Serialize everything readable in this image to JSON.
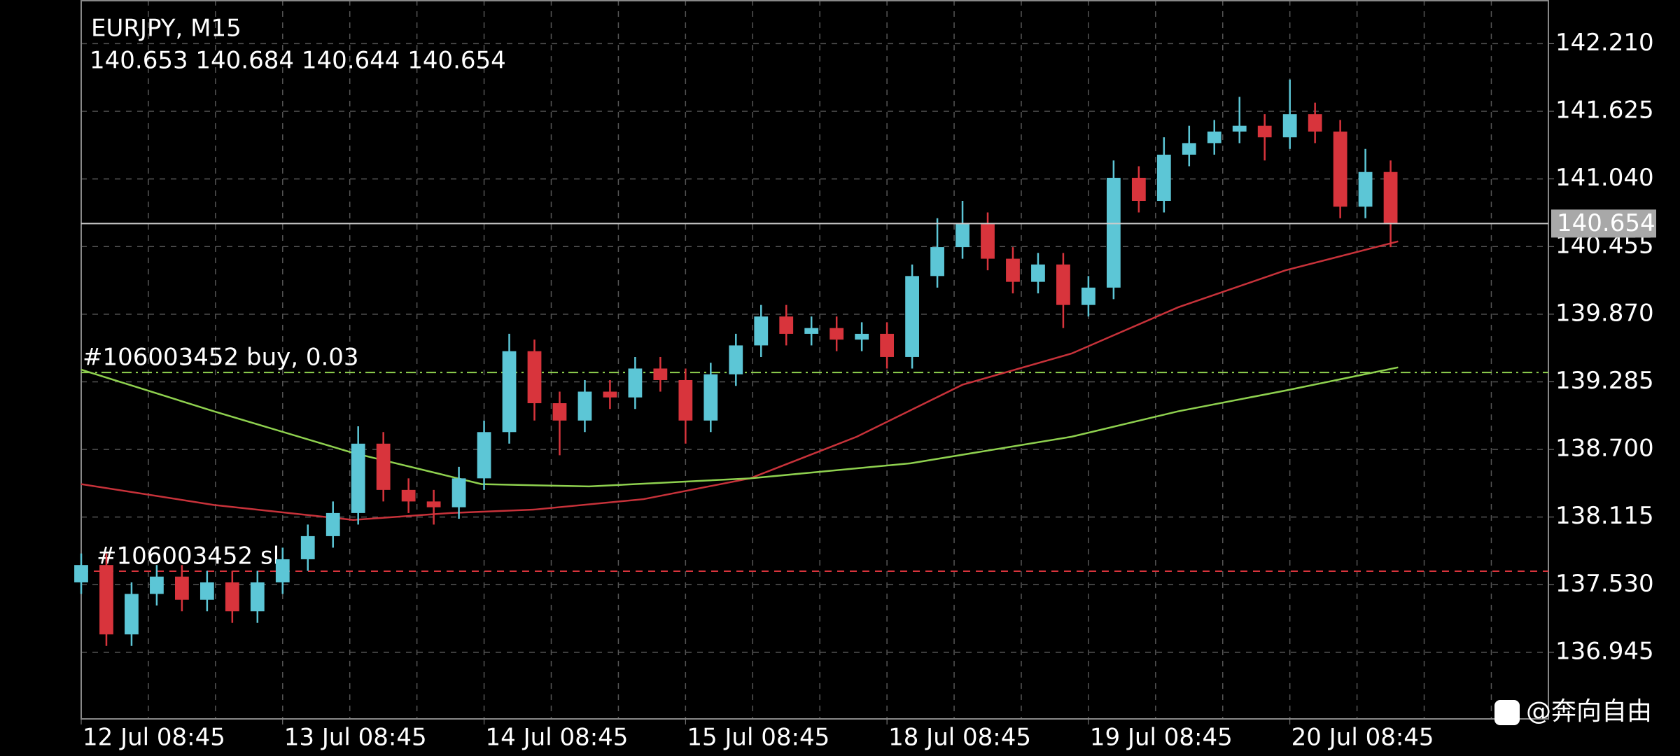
{
  "chart_data": {
    "type": "candlestick",
    "title": "EURJPY, M15",
    "subtitle": "140.653 140.684 140.644 140.654",
    "x": [
      0,
      3,
      6,
      9,
      12,
      15,
      18,
      21,
      24,
      27,
      30,
      33,
      36,
      39,
      42,
      45,
      48,
      51,
      54,
      57,
      60,
      63,
      66,
      69,
      72,
      75,
      78,
      81,
      84,
      87,
      90,
      93,
      96,
      99,
      102,
      105,
      108,
      111,
      114,
      117,
      120,
      123,
      126,
      129,
      132,
      135,
      138,
      141,
      144,
      147,
      150,
      153,
      156
    ],
    "open": [
      137.55,
      137.7,
      137.1,
      137.45,
      137.6,
      137.4,
      137.55,
      137.3,
      137.55,
      137.75,
      137.95,
      138.15,
      138.75,
      138.35,
      138.25,
      138.2,
      138.45,
      138.85,
      139.55,
      139.1,
      138.95,
      139.2,
      139.15,
      139.4,
      139.3,
      138.95,
      139.35,
      139.6,
      139.85,
      139.7,
      139.75,
      139.65,
      139.7,
      139.5,
      140.2,
      140.45,
      140.65,
      140.35,
      140.15,
      140.3,
      139.95,
      140.1,
      141.05,
      140.85,
      141.25,
      141.35,
      141.45,
      141.5,
      141.4,
      141.6,
      141.45,
      140.8,
      141.1
    ],
    "high": [
      137.8,
      137.8,
      137.55,
      137.7,
      137.7,
      137.65,
      137.65,
      137.65,
      137.85,
      138.05,
      138.25,
      138.9,
      138.85,
      138.45,
      138.35,
      138.55,
      138.95,
      139.7,
      139.65,
      139.2,
      139.3,
      139.3,
      139.5,
      139.5,
      139.4,
      139.45,
      139.7,
      139.95,
      139.95,
      139.85,
      139.85,
      139.8,
      139.8,
      140.3,
      140.7,
      140.85,
      140.75,
      140.45,
      140.4,
      140.4,
      140.2,
      141.2,
      141.15,
      141.4,
      141.5,
      141.55,
      141.75,
      141.6,
      141.9,
      141.7,
      141.55,
      141.3,
      141.2
    ],
    "low": [
      137.45,
      137.0,
      137.0,
      137.35,
      137.3,
      137.3,
      137.2,
      137.2,
      137.45,
      137.65,
      137.85,
      138.05,
      138.25,
      138.15,
      138.05,
      138.1,
      138.35,
      138.75,
      138.95,
      138.65,
      138.85,
      139.05,
      139.05,
      139.2,
      138.75,
      138.85,
      139.25,
      139.5,
      139.6,
      139.6,
      139.55,
      139.55,
      139.4,
      139.4,
      140.1,
      140.35,
      140.25,
      140.05,
      140.05,
      139.75,
      139.85,
      140.0,
      140.75,
      140.75,
      141.15,
      141.25,
      141.35,
      141.2,
      141.3,
      141.35,
      140.7,
      140.7,
      140.45
    ],
    "close": [
      137.7,
      137.1,
      137.45,
      137.6,
      137.4,
      137.55,
      137.3,
      137.55,
      137.75,
      137.95,
      138.15,
      138.75,
      138.35,
      138.25,
      138.2,
      138.45,
      138.85,
      139.55,
      139.1,
      138.95,
      139.2,
      139.15,
      139.4,
      139.3,
      138.95,
      139.35,
      139.6,
      139.85,
      139.7,
      139.75,
      139.65,
      139.7,
      139.5,
      140.2,
      140.45,
      140.65,
      140.35,
      140.15,
      140.3,
      139.95,
      140.1,
      141.05,
      140.85,
      141.25,
      141.35,
      141.45,
      141.5,
      141.4,
      141.6,
      141.45,
      140.8,
      141.1,
      140.65
    ],
    "up_color": "#5cc6d6",
    "down_color": "#d8343c",
    "moving_averages": [
      {
        "color": "#c8323a",
        "x": [
          0,
          15.8,
          32.4,
          44,
          54,
          67,
          79.7,
          92.4,
          105,
          118,
          130.7,
          143.5,
          156.9
        ],
        "values": [
          138.4,
          138.22,
          138.09,
          138.15,
          138.18,
          138.27,
          138.45,
          138.81,
          139.26,
          139.53,
          139.93,
          140.25,
          140.5
        ]
      },
      {
        "color": "#8fd14f",
        "x": [
          0,
          15.8,
          32.4,
          47.7,
          60.5,
          79.7,
          98.8,
          118,
          130.7,
          143.5,
          156.9
        ],
        "values": [
          139.39,
          139.03,
          138.67,
          138.4,
          138.38,
          138.45,
          138.58,
          138.81,
          139.03,
          139.21,
          139.41
        ]
      }
    ],
    "xlim": [
      0,
      174.8
    ],
    "ylim": [
      136.369,
      142.588
    ],
    "xticks": [
      {
        "value": 0,
        "label": "12 Jul 08:45"
      },
      {
        "value": 24,
        "label": "13 Jul 08:45"
      },
      {
        "value": 48,
        "label": "14 Jul 08:45"
      },
      {
        "value": 72,
        "label": "15 Jul 08:45"
      },
      {
        "value": 96,
        "label": "18 Jul 08:45"
      },
      {
        "value": 120,
        "label": "19 Jul 08:45"
      },
      {
        "value": 144,
        "label": "20 Jul 08:45"
      }
    ],
    "xgrid": [
      8,
      16,
      24,
      32,
      40,
      48,
      56,
      64,
      72,
      80,
      88,
      96,
      104,
      112,
      120,
      128,
      136,
      144,
      152,
      160,
      168
    ],
    "yticks": [
      {
        "value": 142.21,
        "label": "142.210"
      },
      141.625,
      {
        "value": 141.04,
        "label": "141.040"
      },
      140.455,
      {
        "value": 139.87,
        "label": "139.870"
      },
      139.285,
      {
        "value": 138.7,
        "label": "138.700"
      },
      138.115,
      {
        "value": 137.53,
        "label": "137.530"
      },
      136.945
    ],
    "grid": true,
    "current_price": 140.654,
    "orders": [
      {
        "label": "#106003452 buy, 0.03",
        "price": 139.366,
        "color": "#8fd14f",
        "style": "dash-dot"
      },
      {
        "label": "#106003452 sl",
        "price": 137.647,
        "color": "#d8343c",
        "style": "dashed"
      }
    ]
  },
  "watermark": "@奔向自由"
}
